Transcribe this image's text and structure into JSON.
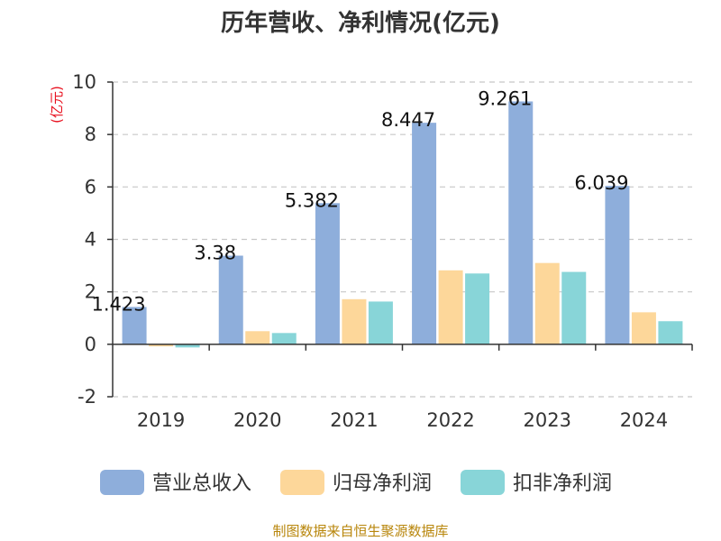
{
  "chart_data": {
    "type": "bar",
    "title": "历年营收、净利情况(亿元)",
    "ylabel": "(亿元)",
    "xlabel": "",
    "categories": [
      "2019",
      "2020",
      "2021",
      "2022",
      "2023",
      "2024"
    ],
    "ylim": [
      -2,
      10
    ],
    "yticks": [
      -2,
      0,
      2,
      4,
      6,
      8,
      10
    ],
    "grid": true,
    "legend_position": "bottom",
    "series": [
      {
        "name": "营业总收入",
        "color": "#8eaedb",
        "values": [
          1.423,
          3.38,
          5.382,
          8.447,
          9.261,
          6.039
        ],
        "labels": [
          "1.423",
          "3.38",
          "5.382",
          "8.447",
          "9.261",
          "6.039"
        ]
      },
      {
        "name": "归母净利润",
        "color": "#fdd79a",
        "values": [
          -0.08,
          0.5,
          1.72,
          2.82,
          3.1,
          1.22
        ]
      },
      {
        "name": "扣非净利润",
        "color": "#88d5d8",
        "values": [
          -0.12,
          0.43,
          1.63,
          2.7,
          2.76,
          0.88
        ]
      }
    ]
  },
  "source_text": "制图数据来自恒生聚源数据库"
}
